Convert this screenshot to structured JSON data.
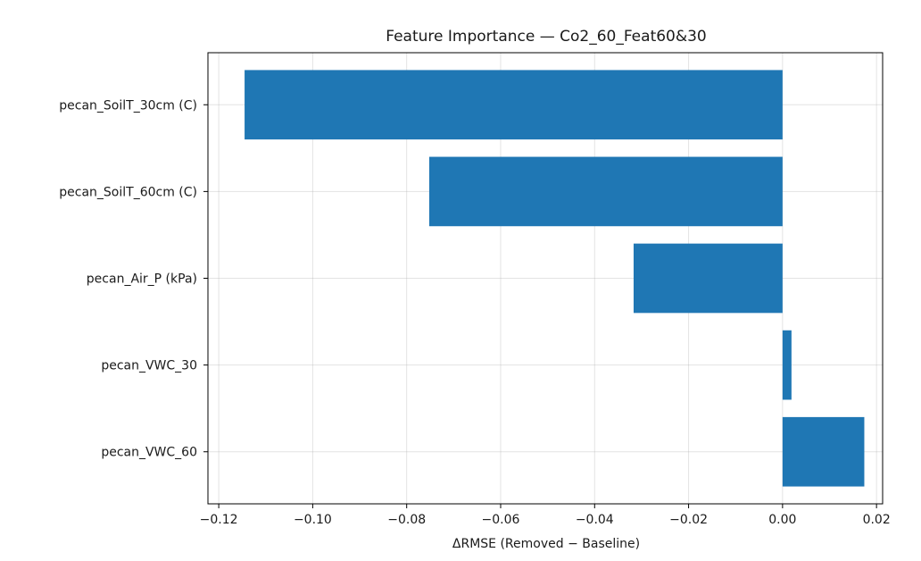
{
  "chart_data": {
    "type": "bar",
    "orientation": "horizontal",
    "title": "Feature Importance — Co2_60_Feat60&30",
    "xlabel": "ΔRMSE (Removed − Baseline)",
    "ylabel": "",
    "categories": [
      "pecan_SoilT_30cm (C)",
      "pecan_SoilT_60cm (C)",
      "pecan_Air_P (kPa)",
      "pecan_VWC_30",
      "pecan_VWC_60"
    ],
    "values": [
      -0.1145,
      -0.0752,
      -0.0317,
      0.0019,
      0.0174
    ],
    "xlim": [
      -0.1223,
      0.0213
    ],
    "xticks": [
      -0.12,
      -0.1,
      -0.08,
      -0.06,
      -0.04,
      -0.02,
      0.0,
      0.02
    ],
    "xtick_labels": [
      "−0.12",
      "−0.10",
      "−0.08",
      "−0.06",
      "−0.04",
      "−0.02",
      "0.00",
      "0.02"
    ],
    "grid": true,
    "legend": "none",
    "bar_color": "#1f77b4"
  }
}
